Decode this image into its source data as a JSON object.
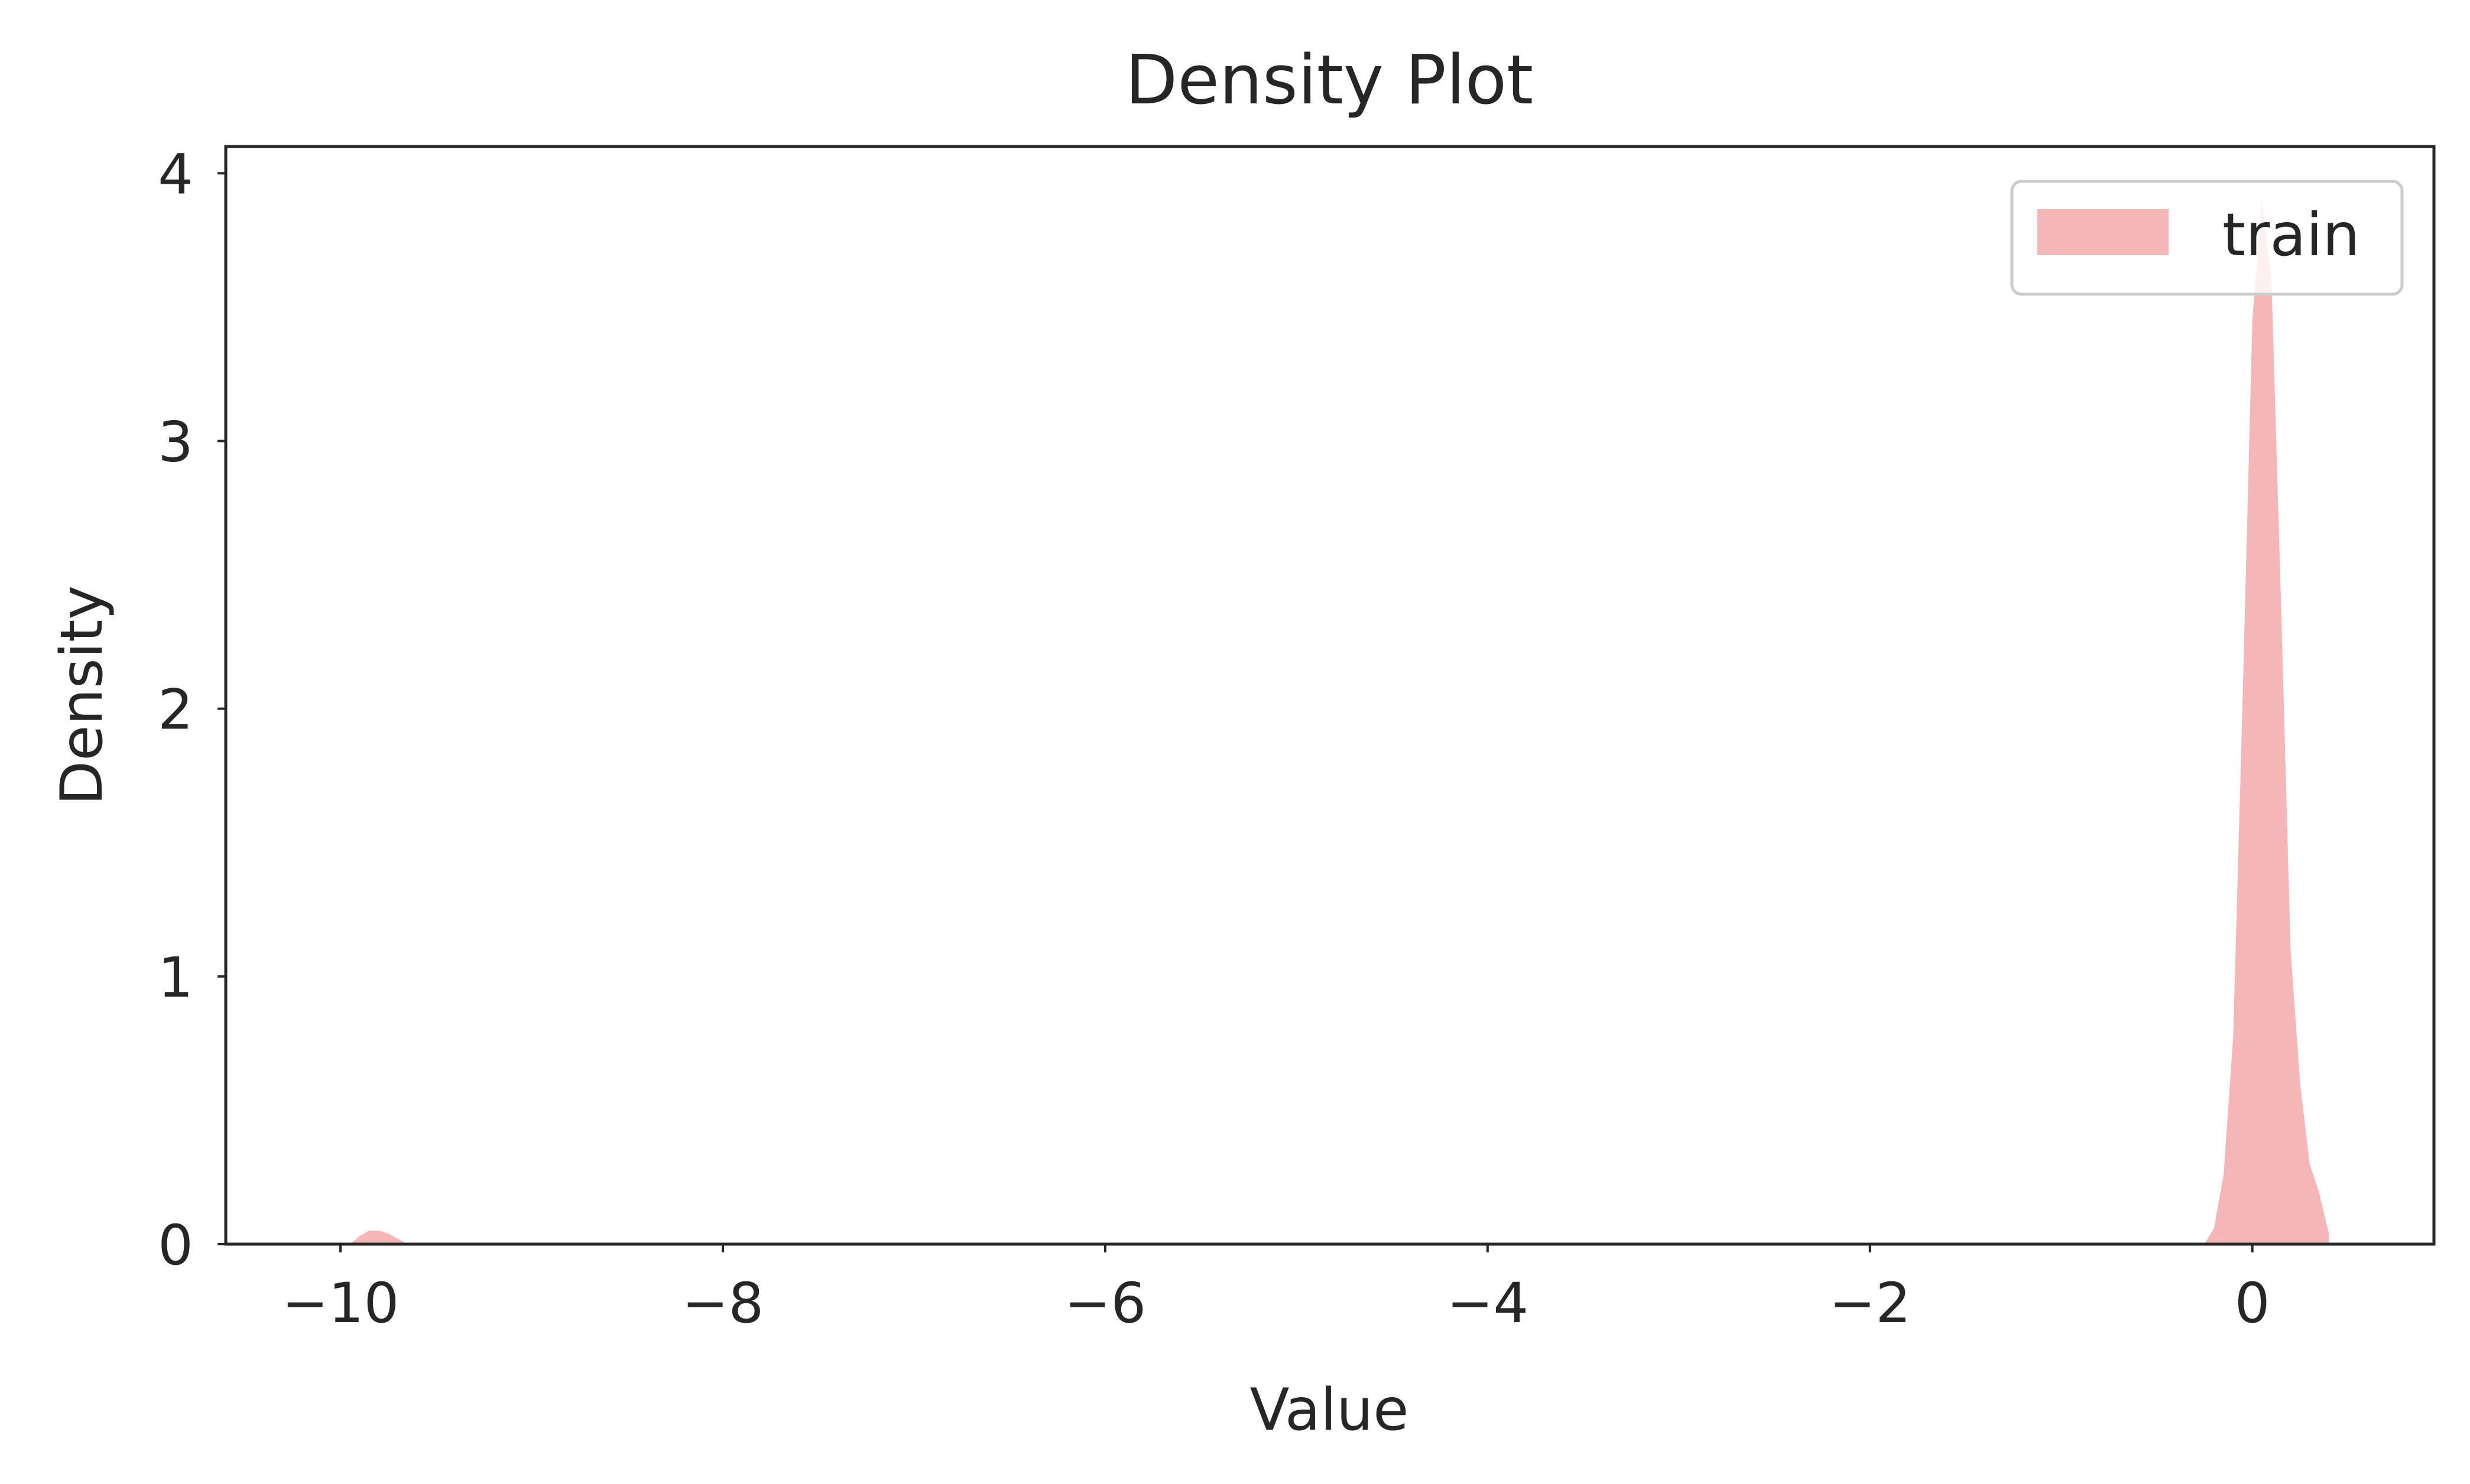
{
  "chart_data": {
    "type": "area",
    "title": "Density Plot",
    "xlabel": "Value",
    "ylabel": "Density",
    "xlim": [
      -10.6,
      0.95
    ],
    "ylim": [
      0,
      4.1
    ],
    "xticks": [
      {
        "value": -10,
        "label": "−10"
      },
      {
        "value": -8,
        "label": "−8"
      },
      {
        "value": -6,
        "label": "−6"
      },
      {
        "value": -4,
        "label": "−4"
      },
      {
        "value": -2,
        "label": "−2"
      },
      {
        "value": 0,
        "label": "0"
      }
    ],
    "yticks": [
      {
        "value": 0,
        "label": "0"
      },
      {
        "value": 1,
        "label": "1"
      },
      {
        "value": 2,
        "label": "2"
      },
      {
        "value": 3,
        "label": "3"
      },
      {
        "value": 4,
        "label": "4"
      }
    ],
    "grid": false,
    "legend_position": "top-right",
    "series": [
      {
        "name": "train",
        "color": "#f4b6b6",
        "x": [
          -9.95,
          -9.9,
          -9.85,
          -9.8,
          -9.75,
          -9.7,
          -9.65,
          -0.25,
          -0.2,
          -0.15,
          -0.1,
          -0.05,
          0.0,
          0.05,
          0.1,
          0.15,
          0.2,
          0.25,
          0.3,
          0.35,
          0.4
        ],
        "y": [
          0.0,
          0.03,
          0.05,
          0.05,
          0.04,
          0.02,
          0.0,
          0.0,
          0.06,
          0.26,
          0.78,
          2.05,
          3.45,
          3.9,
          3.6,
          2.4,
          1.1,
          0.6,
          0.3,
          0.19,
          0.04
        ]
      }
    ]
  }
}
